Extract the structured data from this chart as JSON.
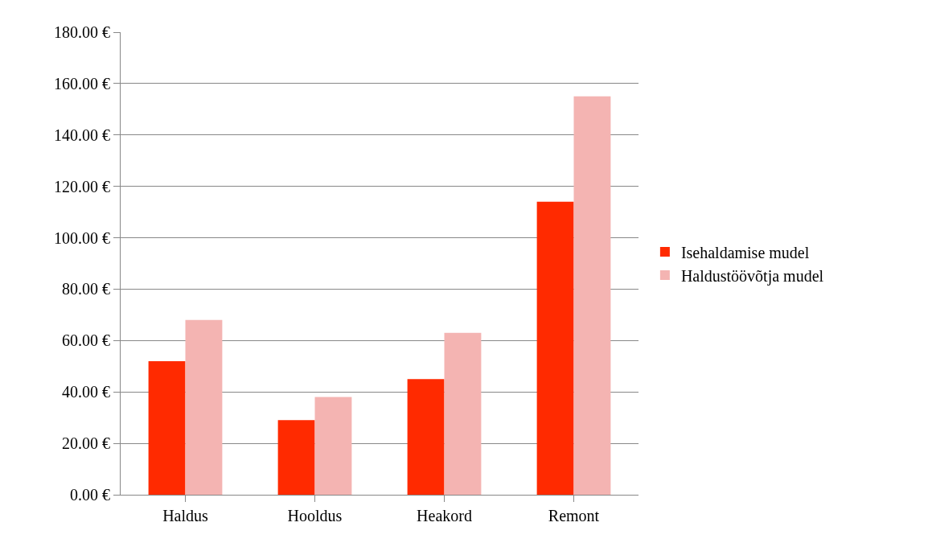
{
  "chart_data": {
    "type": "bar",
    "categories": [
      "Haldus",
      "Hooldus",
      "Heakord",
      "Remont"
    ],
    "series": [
      {
        "name": "Isehaldamise mudel",
        "color": "#ff2a00",
        "values": [
          52,
          29,
          45,
          114
        ]
      },
      {
        "name": "Haldustöövõtja mudel",
        "color": "#f4b4b2",
        "values": [
          68,
          38,
          63,
          155
        ]
      }
    ],
    "ylim": [
      0,
      180
    ],
    "yticks": [
      {
        "value": 0,
        "label": "0.00 €"
      },
      {
        "value": 20,
        "label": "20.00 €"
      },
      {
        "value": 40,
        "label": "40.00 €"
      },
      {
        "value": 60,
        "label": "60.00 €"
      },
      {
        "value": 80,
        "label": "80.00 €"
      },
      {
        "value": 100,
        "label": "100.00 €"
      },
      {
        "value": 120,
        "label": "120.00 €"
      },
      {
        "value": 140,
        "label": "140.00 €"
      },
      {
        "value": 160,
        "label": "160.00 €"
      },
      {
        "value": 180,
        "label": "180.00 €"
      }
    ],
    "grid": "y",
    "legend": "right"
  }
}
